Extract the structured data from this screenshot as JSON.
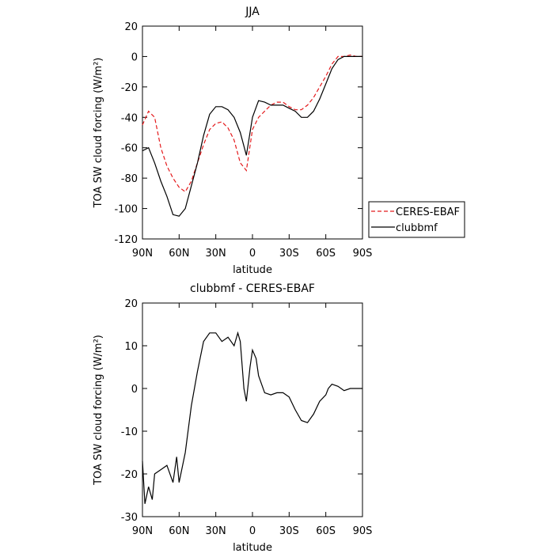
{
  "chart_data": [
    {
      "type": "line",
      "title": "JJA",
      "x_label": "latitude",
      "y_label": "TOA SW cloud forcing (W/m²)",
      "xlim": [
        90,
        -90
      ],
      "ylim": [
        -120,
        20
      ],
      "xticks": [
        {
          "value": 90,
          "label": "90N"
        },
        {
          "value": 60,
          "label": "60N"
        },
        {
          "value": 30,
          "label": "30N"
        },
        0,
        {
          "value": -30,
          "label": "30S"
        },
        {
          "value": -60,
          "label": "60S"
        },
        {
          "value": -90,
          "label": "90S"
        }
      ],
      "yticks": [
        -120,
        -100,
        -80,
        -60,
        -40,
        -20,
        0,
        20
      ],
      "legend": "outside-right",
      "x": [
        90,
        85,
        80,
        75,
        70,
        65,
        60,
        55,
        50,
        45,
        40,
        35,
        30,
        25,
        20,
        15,
        10,
        5,
        0,
        -5,
        -10,
        -15,
        -20,
        -25,
        -30,
        -35,
        -40,
        -45,
        -50,
        -55,
        -60,
        -65,
        -70,
        -75,
        -80,
        -85,
        -90
      ],
      "series": [
        {
          "name": "CERES-EBAF",
          "color": "#e41a1c",
          "line_style": "dashed",
          "values": [
            -45,
            -36,
            -40,
            -60,
            -72,
            -80,
            -86,
            -89,
            -82,
            -70,
            -58,
            -48,
            -44,
            -43,
            -47,
            -55,
            -70,
            -75,
            -48,
            -40,
            -36,
            -32,
            -30,
            -30,
            -33,
            -35,
            -35,
            -32,
            -27,
            -20,
            -13,
            -5,
            0,
            0,
            1,
            0,
            0
          ]
        },
        {
          "name": "clubbmf",
          "color": "#000000",
          "line_style": "solid",
          "values": [
            -62,
            -60,
            -70,
            -82,
            -92,
            -104,
            -105,
            -100,
            -85,
            -70,
            -52,
            -38,
            -33,
            -33,
            -35,
            -40,
            -50,
            -65,
            -40,
            -29,
            -30,
            -32,
            -32,
            -32,
            -34,
            -36,
            -40,
            -40,
            -36,
            -28,
            -18,
            -8,
            -2,
            0,
            0,
            0,
            0
          ]
        }
      ]
    },
    {
      "type": "line",
      "title": "clubbmf - CERES-EBAF",
      "x_label": "latitude",
      "y_label": "TOA SW cloud forcing (W/m²)",
      "xlim": [
        90,
        -90
      ],
      "ylim": [
        -30,
        20
      ],
      "xticks": [
        {
          "value": 90,
          "label": "90N"
        },
        {
          "value": 60,
          "label": "60N"
        },
        {
          "value": 30,
          "label": "30N"
        },
        0,
        {
          "value": -30,
          "label": "30S"
        },
        {
          "value": -60,
          "label": "60S"
        },
        {
          "value": -90,
          "label": "90S"
        }
      ],
      "yticks": [
        -30,
        -20,
        -10,
        0,
        10,
        20
      ],
      "x": [
        90,
        88,
        85,
        82,
        80,
        75,
        70,
        65,
        62,
        60,
        55,
        50,
        45,
        40,
        35,
        30,
        25,
        20,
        15,
        12,
        10,
        7,
        5,
        2,
        0,
        -3,
        -5,
        -10,
        -15,
        -20,
        -25,
        -30,
        -35,
        -40,
        -45,
        -50,
        -55,
        -60,
        -62,
        -65,
        -70,
        -75,
        -80,
        -85,
        -90
      ],
      "series": [
        {
          "color": "#000000",
          "line_style": "solid",
          "values": [
            -17,
            -27,
            -23,
            -26,
            -20,
            -19,
            -18,
            -22,
            -16,
            -22,
            -15,
            -4,
            4,
            11,
            13,
            13,
            11,
            12,
            10,
            13,
            11,
            0,
            -3,
            5,
            9,
            7,
            3,
            -1,
            -1.5,
            -1,
            -1,
            -2,
            -5,
            -7.5,
            -8,
            -6,
            -3,
            -1.5,
            0,
            1,
            0.5,
            -0.5,
            0,
            0,
            0
          ]
        }
      ]
    }
  ]
}
